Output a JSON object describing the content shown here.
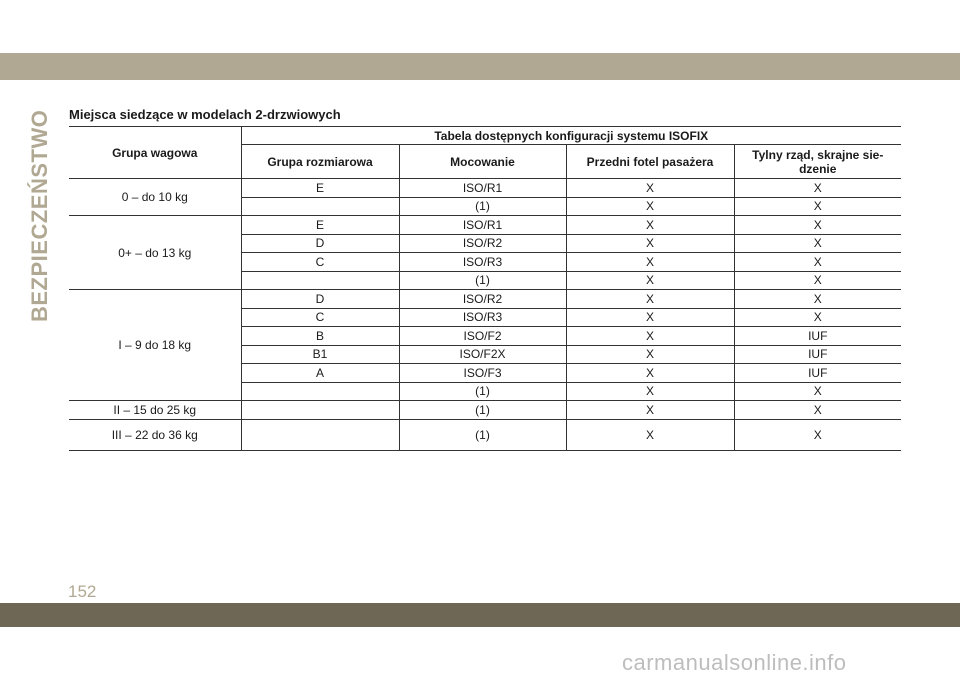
{
  "page": {
    "section_tab": "BEZPIECZEŃSTWO",
    "page_number": "152",
    "watermark": "carmanualsonline.info"
  },
  "section_title": "Miejsca siedzące w modelach 2-drzwiowych",
  "table": {
    "col_weight": "Grupa wagowa",
    "group_header": "Tabela dostępnych konfiguracji systemu ISOFIX",
    "col_size": "Grupa rozmiarowa",
    "col_mount": "Mocowanie",
    "col_front": "Przedni fotel pasażera",
    "col_rear_line1": "Tylny rząd, skrajne sie-",
    "col_rear_line2": "dzenie",
    "groups": [
      {
        "weight": "0 – do 10 kg",
        "rows": [
          {
            "size": "E",
            "mount": "ISO/R1",
            "front": "X",
            "rear": "X"
          },
          {
            "size": "",
            "mount": "(1)",
            "front": "X",
            "rear": "X"
          }
        ]
      },
      {
        "weight": "0+ – do 13 kg",
        "rows": [
          {
            "size": "E",
            "mount": "ISO/R1",
            "front": "X",
            "rear": "X"
          },
          {
            "size": "D",
            "mount": "ISO/R2",
            "front": "X",
            "rear": "X"
          },
          {
            "size": "C",
            "mount": "ISO/R3",
            "front": "X",
            "rear": "X"
          },
          {
            "size": "",
            "mount": "(1)",
            "front": "X",
            "rear": "X"
          }
        ]
      },
      {
        "weight": "I – 9 do 18 kg",
        "rows": [
          {
            "size": "D",
            "mount": "ISO/R2",
            "front": "X",
            "rear": "X"
          },
          {
            "size": "C",
            "mount": "ISO/R3",
            "front": "X",
            "rear": "X"
          },
          {
            "size": "B",
            "mount": "ISO/F2",
            "front": "X",
            "rear": "IUF"
          },
          {
            "size": "B1",
            "mount": "ISO/F2X",
            "front": "X",
            "rear": "IUF"
          },
          {
            "size": "A",
            "mount": "ISO/F3",
            "front": "X",
            "rear": "IUF"
          },
          {
            "size": "",
            "mount": "(1)",
            "front": "X",
            "rear": "X"
          }
        ]
      },
      {
        "weight": "II – 15 do 25 kg",
        "rows": [
          {
            "size": "",
            "mount": "(1)",
            "front": "X",
            "rear": "X"
          }
        ]
      },
      {
        "weight": "III – 22 do 36 kg",
        "rows": [
          {
            "size": "",
            "mount": "(1)",
            "front": "X",
            "rear": "X"
          }
        ]
      }
    ]
  },
  "colors": {
    "band_light": "#b0a892",
    "band_dark": "#6f6756"
  }
}
